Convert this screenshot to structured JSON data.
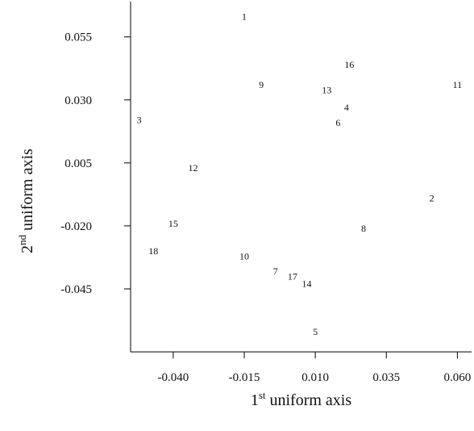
{
  "chart_data": {
    "type": "scatter",
    "title": "",
    "xlabel": {
      "prefix": "1",
      "sup": "st",
      "rest": " uniform axis"
    },
    "ylabel": {
      "prefix": "2",
      "sup": "nd",
      "rest": " uniform axis"
    },
    "xlim": [
      -0.055,
      0.065
    ],
    "ylim": [
      -0.07,
      0.069
    ],
    "x_ticks": [
      {
        "value": -0.04,
        "label": "-0.040"
      },
      {
        "value": -0.015,
        "label": "-0.015"
      },
      {
        "value": 0.01,
        "label": "0.010"
      },
      {
        "value": 0.035,
        "label": "0.035"
      },
      {
        "value": 0.06,
        "label": "0.060"
      }
    ],
    "y_ticks": [
      {
        "value": 0.055,
        "label": "0.055"
      },
      {
        "value": 0.03,
        "label": "0.030"
      },
      {
        "value": 0.005,
        "label": "0.005"
      },
      {
        "value": -0.02,
        "label": "-0.020"
      },
      {
        "value": -0.045,
        "label": "-0.045"
      }
    ],
    "grid": false,
    "points": [
      {
        "label": "1",
        "x": -0.015,
        "y": 0.063
      },
      {
        "label": "2",
        "x": 0.051,
        "y": -0.009
      },
      {
        "label": "3",
        "x": -0.052,
        "y": 0.022
      },
      {
        "label": "4",
        "x": 0.021,
        "y": 0.027
      },
      {
        "label": "5",
        "x": 0.01,
        "y": -0.062
      },
      {
        "label": "6",
        "x": 0.018,
        "y": 0.021
      },
      {
        "label": "7",
        "x": -0.004,
        "y": -0.038
      },
      {
        "label": "8",
        "x": 0.027,
        "y": -0.021
      },
      {
        "label": "9",
        "x": -0.009,
        "y": 0.036
      },
      {
        "label": "10",
        "x": -0.015,
        "y": -0.032
      },
      {
        "label": "11",
        "x": 0.06,
        "y": 0.036
      },
      {
        "label": "12",
        "x": -0.033,
        "y": 0.003
      },
      {
        "label": "13",
        "x": 0.014,
        "y": 0.034
      },
      {
        "label": "14",
        "x": 0.007,
        "y": -0.043
      },
      {
        "label": "15",
        "x": -0.04,
        "y": -0.019
      },
      {
        "label": "16",
        "x": 0.022,
        "y": 0.044
      },
      {
        "label": "17",
        "x": 0.002,
        "y": -0.04
      },
      {
        "label": "18",
        "x": -0.047,
        "y": -0.03
      }
    ]
  }
}
